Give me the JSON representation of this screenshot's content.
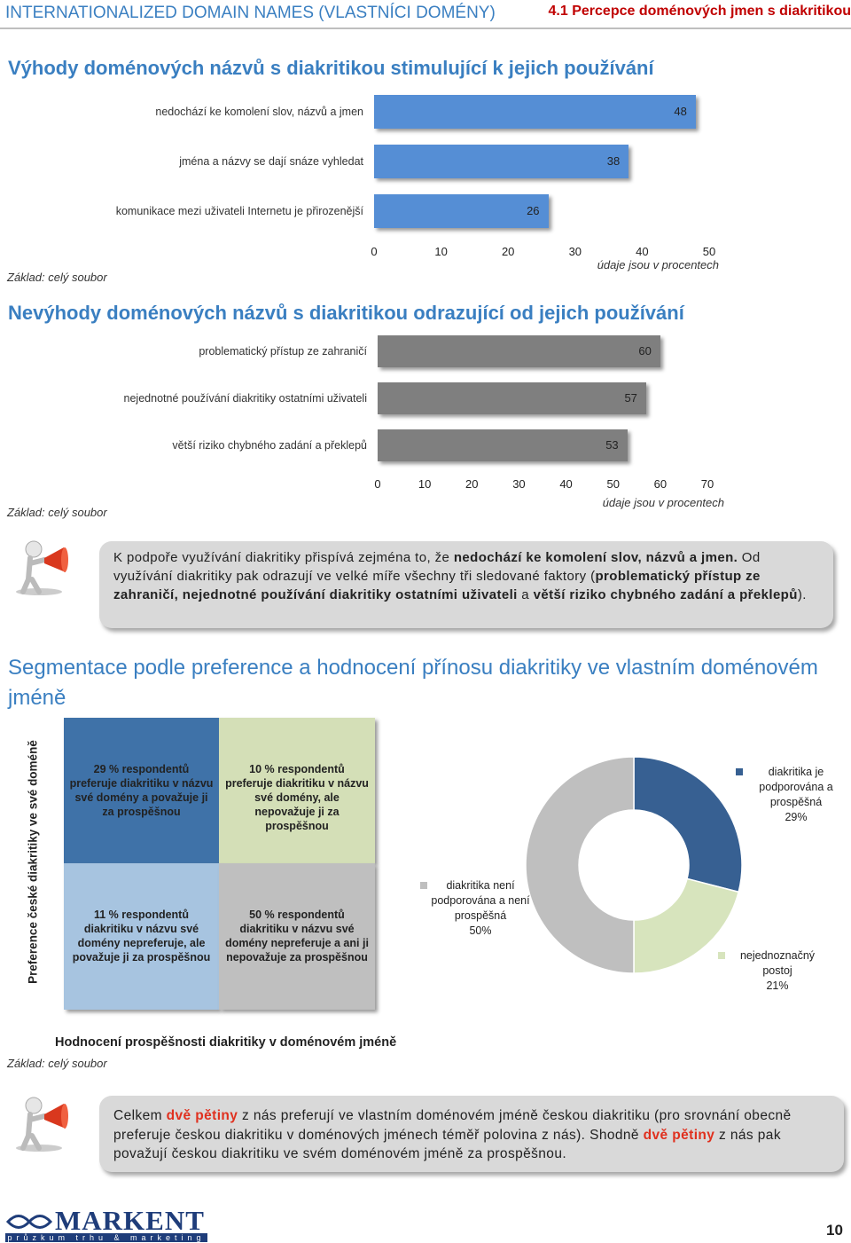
{
  "header": {
    "left": "INTERNATIONALIZED DOMAIN NAMES (VLASTNÍCI DOMÉNY)",
    "right": "4.1 Percepce doménových jmen s diakritikou"
  },
  "chart_data": [
    {
      "type": "bar",
      "orientation": "horizontal",
      "title": "Výhody doménových názvů s diakritikou stimulující k jejich používání",
      "categories": [
        "nedochází ke komolení slov, názvů a jmen",
        "jména a názvy se dají snáze vyhledat",
        "komunikace mezi uživateli Internetu je přirozenější"
      ],
      "values": [
        48,
        38,
        26
      ],
      "color": "#558ed5",
      "xlim": [
        0,
        50
      ],
      "xticks": [
        0,
        10,
        20,
        30,
        40,
        50
      ],
      "x_label": "údaje jsou v procentech",
      "note": "Základ: celý soubor"
    },
    {
      "type": "bar",
      "orientation": "horizontal",
      "title": "Nevýhody doménových názvů s diakritikou odrazující od jejich používání",
      "categories": [
        "problematický přístup ze zahraničí",
        "nejednotné používání diakritiky ostatními uživateli",
        "větší riziko chybného zadání a překlepů"
      ],
      "values": [
        60,
        57,
        53
      ],
      "color": "#7f7f7f",
      "xlim": [
        0,
        70
      ],
      "xticks": [
        0,
        10,
        20,
        30,
        40,
        50,
        60,
        70
      ],
      "x_label": "údaje jsou v procentech",
      "note": "Základ: celý soubor"
    },
    {
      "type": "pie",
      "donut": true,
      "categories": [
        "diakritika je podporována a prospěšná",
        "nejednoznačný postoj",
        "diakritika není podporována a není prospěšná"
      ],
      "values": [
        29,
        21,
        50
      ],
      "value_labels": [
        "29%",
        "21%",
        "50%"
      ],
      "colors": [
        "#376092",
        "#d7e4bd",
        "#bfbfbf"
      ]
    }
  ],
  "callouts": [
    {
      "parts": [
        {
          "text": "K podpoře využívání diakritiky přispívá zejména to, že "
        },
        {
          "text": "nedochází ke komolení slov, názvů a jmen.",
          "bold": true
        },
        {
          "text": " Od využívání diakritiky pak odrazují ve velké míře všechny tři sledované faktory ("
        },
        {
          "text": "problematický přístup ze zahraničí, nejednotné používání diakritiky ostatními uživateli",
          "bold": true
        },
        {
          "text": "  a "
        },
        {
          "text": "větší riziko chybného zadání a překlepů",
          "bold": true
        },
        {
          "text": ")."
        }
      ]
    },
    {
      "parts": [
        {
          "text": "Celkem "
        },
        {
          "text": "dvě pětiny",
          "bold": true,
          "red": true
        },
        {
          "text": " z nás preferují ve vlastním doménovém jméně českou diakritiku (pro srovnání obecně preferuje českou diakritiku v doménových jménech téměř polovina z nás). Shodně "
        },
        {
          "text": "dvě pětiny",
          "bold": true,
          "red": true
        },
        {
          "text": " z nás pak považují českou diakritiku ve svém doménovém jméně za prospěšnou."
        }
      ]
    }
  ],
  "segmentation": {
    "title": "Segmentace podle preference a hodnocení přínosu diakritiky ve vlastním doménovém jméně",
    "y_label": "Preference české diakritiky ve své doméně",
    "x_label": "Hodnocení prospěšnosti diakritiky v doménovém jméně",
    "note": "Základ: celý soubor",
    "cells": [
      "29 % respondentů preferuje diakritiku v názvu své domény a považuje ji za prospěšnou",
      "10 % respondentů preferuje diakritiku v názvu své domény, ale nepovažuje ji za prospěšnou",
      "11 % respondentů diakritiku v názvu své domény nepreferuje, ale považuje ji za prospěšnou",
      "50 % respondentů diakritiku v názvu své domény nepreferuje a ani ji nepovažuje za prospěšnou"
    ]
  },
  "footer": {
    "logo": "MARKENT",
    "tagline": "průzkum trhu & marketing",
    "page": "10"
  }
}
